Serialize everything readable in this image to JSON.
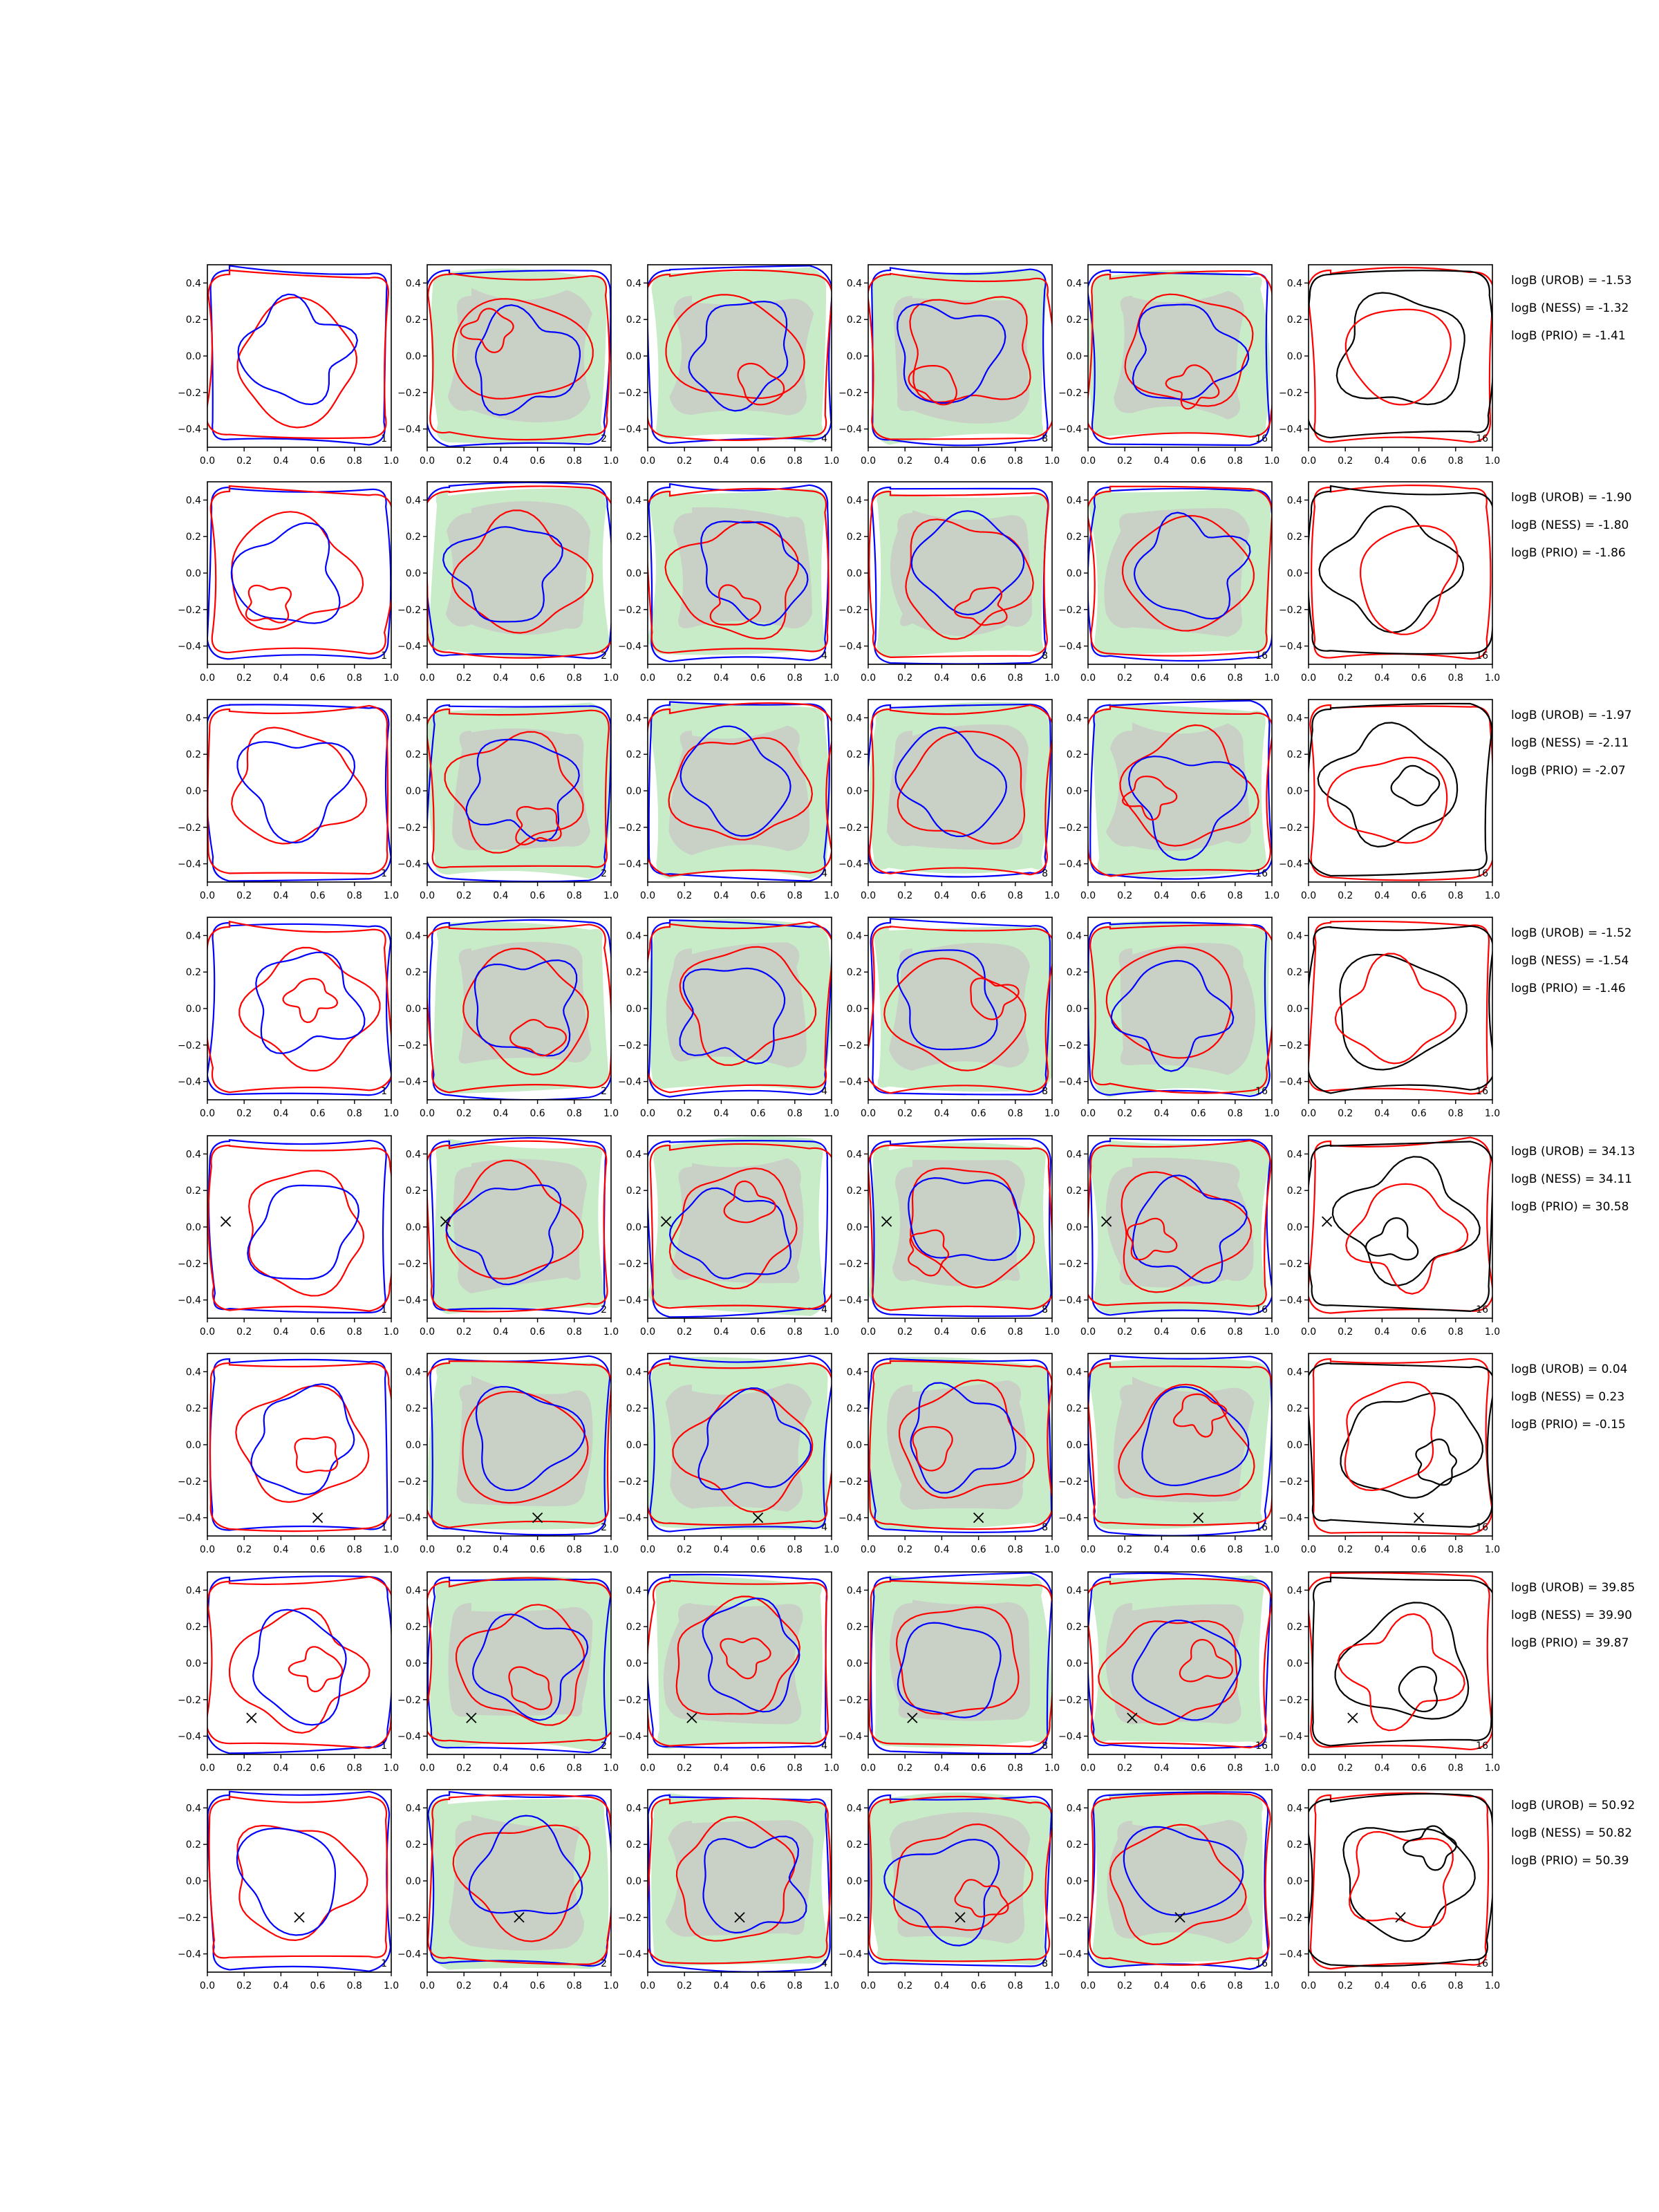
{
  "colors": {
    "contour_a": "#ff0000",
    "contour_b": "#0000ff",
    "contour_final": "#000000",
    "fill_outer": "#c8ecc8",
    "fill_inner": "#c9d1c6",
    "marker": "#000000"
  },
  "chart_data": {
    "type": "contour",
    "grid": {
      "rows": 8,
      "cols": 6
    },
    "xlim": [
      0.0,
      1.0
    ],
    "ylim": [
      -0.5,
      0.5
    ],
    "xticks": [
      "0.0",
      "0.2",
      "0.4",
      "0.6",
      "0.8",
      "1.0"
    ],
    "yticks": [
      "0.4",
      "0.2",
      "0.0",
      "−0.2",
      "−0.4"
    ],
    "panel_counts": [
      "1",
      "2",
      "4",
      "8",
      "16",
      "16"
    ],
    "rows": [
      {
        "marker": null,
        "logB": [
          "logB (UROB) = -1.53",
          "logB (NESS) = -1.32",
          "logB (PRIO) = -1.41"
        ]
      },
      {
        "marker": null,
        "logB": [
          "logB (UROB) = -1.90",
          "logB (NESS) = -1.80",
          "logB (PRIO) = -1.86"
        ]
      },
      {
        "marker": null,
        "logB": [
          "logB (UROB) = -1.97",
          "logB (NESS) = -2.11",
          "logB (PRIO) = -2.07"
        ]
      },
      {
        "marker": null,
        "logB": [
          "logB (UROB) = -1.52",
          "logB (NESS) = -1.54",
          "logB (PRIO) = -1.46"
        ]
      },
      {
        "marker": {
          "x": 0.1,
          "y": 0.03
        },
        "logB": [
          "logB (UROB) = 34.13",
          "logB (NESS) = 34.11",
          "logB (PRIO) = 30.58"
        ]
      },
      {
        "marker": {
          "x": 0.6,
          "y": -0.4
        },
        "logB": [
          "logB (UROB) = 0.04",
          "logB (NESS) = 0.23",
          "logB (PRIO) = -0.15"
        ]
      },
      {
        "marker": {
          "x": 0.24,
          "y": -0.3
        },
        "logB": [
          "logB (UROB) = 39.85",
          "logB (NESS) = 39.90",
          "logB (PRIO) = 39.87"
        ]
      },
      {
        "marker": {
          "x": 0.5,
          "y": -0.2
        },
        "logB": [
          "logB (UROB) = 50.92",
          "logB (NESS) = 50.82",
          "logB (PRIO) = 50.39"
        ]
      }
    ]
  }
}
